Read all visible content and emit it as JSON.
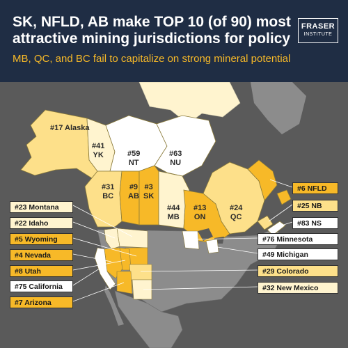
{
  "header": {
    "title": "SK, NFLD, AB make TOP 10 (of 90) most attractive mining jurisdictions for policy",
    "subtitle": "MB, QC, and BC fail to capitalize on strong mineral potential",
    "logo_line1": "FRASER",
    "logo_line2": "INSTITUTE"
  },
  "colors": {
    "header_bg": "#1f2d44",
    "subtitle": "#f7b928",
    "top_tier": "#f7b928",
    "mid_tier": "#fde08a",
    "light_tier": "#fff4cf",
    "low_tier": "#ffffff",
    "other_land": "#8c8c8c"
  },
  "map_labels": {
    "alaska": "#17 Alaska",
    "yk_rank": "#41",
    "yk_name": "YK",
    "nt_rank": "#59",
    "nt_name": "NT",
    "nu_rank": "#63",
    "nu_name": "NU",
    "bc_rank": "#31",
    "bc_name": "BC",
    "ab_rank": "#9",
    "ab_name": "AB",
    "sk_rank": "#3",
    "sk_name": "SK",
    "mb_rank": "#44",
    "mb_name": "MB",
    "on_rank": "#13",
    "on_name": "ON",
    "qc_rank": "#24",
    "qc_name": "QC"
  },
  "callouts": {
    "montana": "#23 Montana",
    "idaho": "#22 Idaho",
    "wyoming": "#5 Wyoming",
    "nevada": "#4 Nevada",
    "utah": "#8 Utah",
    "california": "#75 California",
    "arizona": "#7 Arizona",
    "nfld": "#6 NFLD",
    "nb": "#25 NB",
    "ns": "#83 NS",
    "minnesota": "#76 Minnesota",
    "michigan": "#49 Michigan",
    "colorado": "#29 Colorado",
    "new_mexico": "#32 New Mexico"
  }
}
